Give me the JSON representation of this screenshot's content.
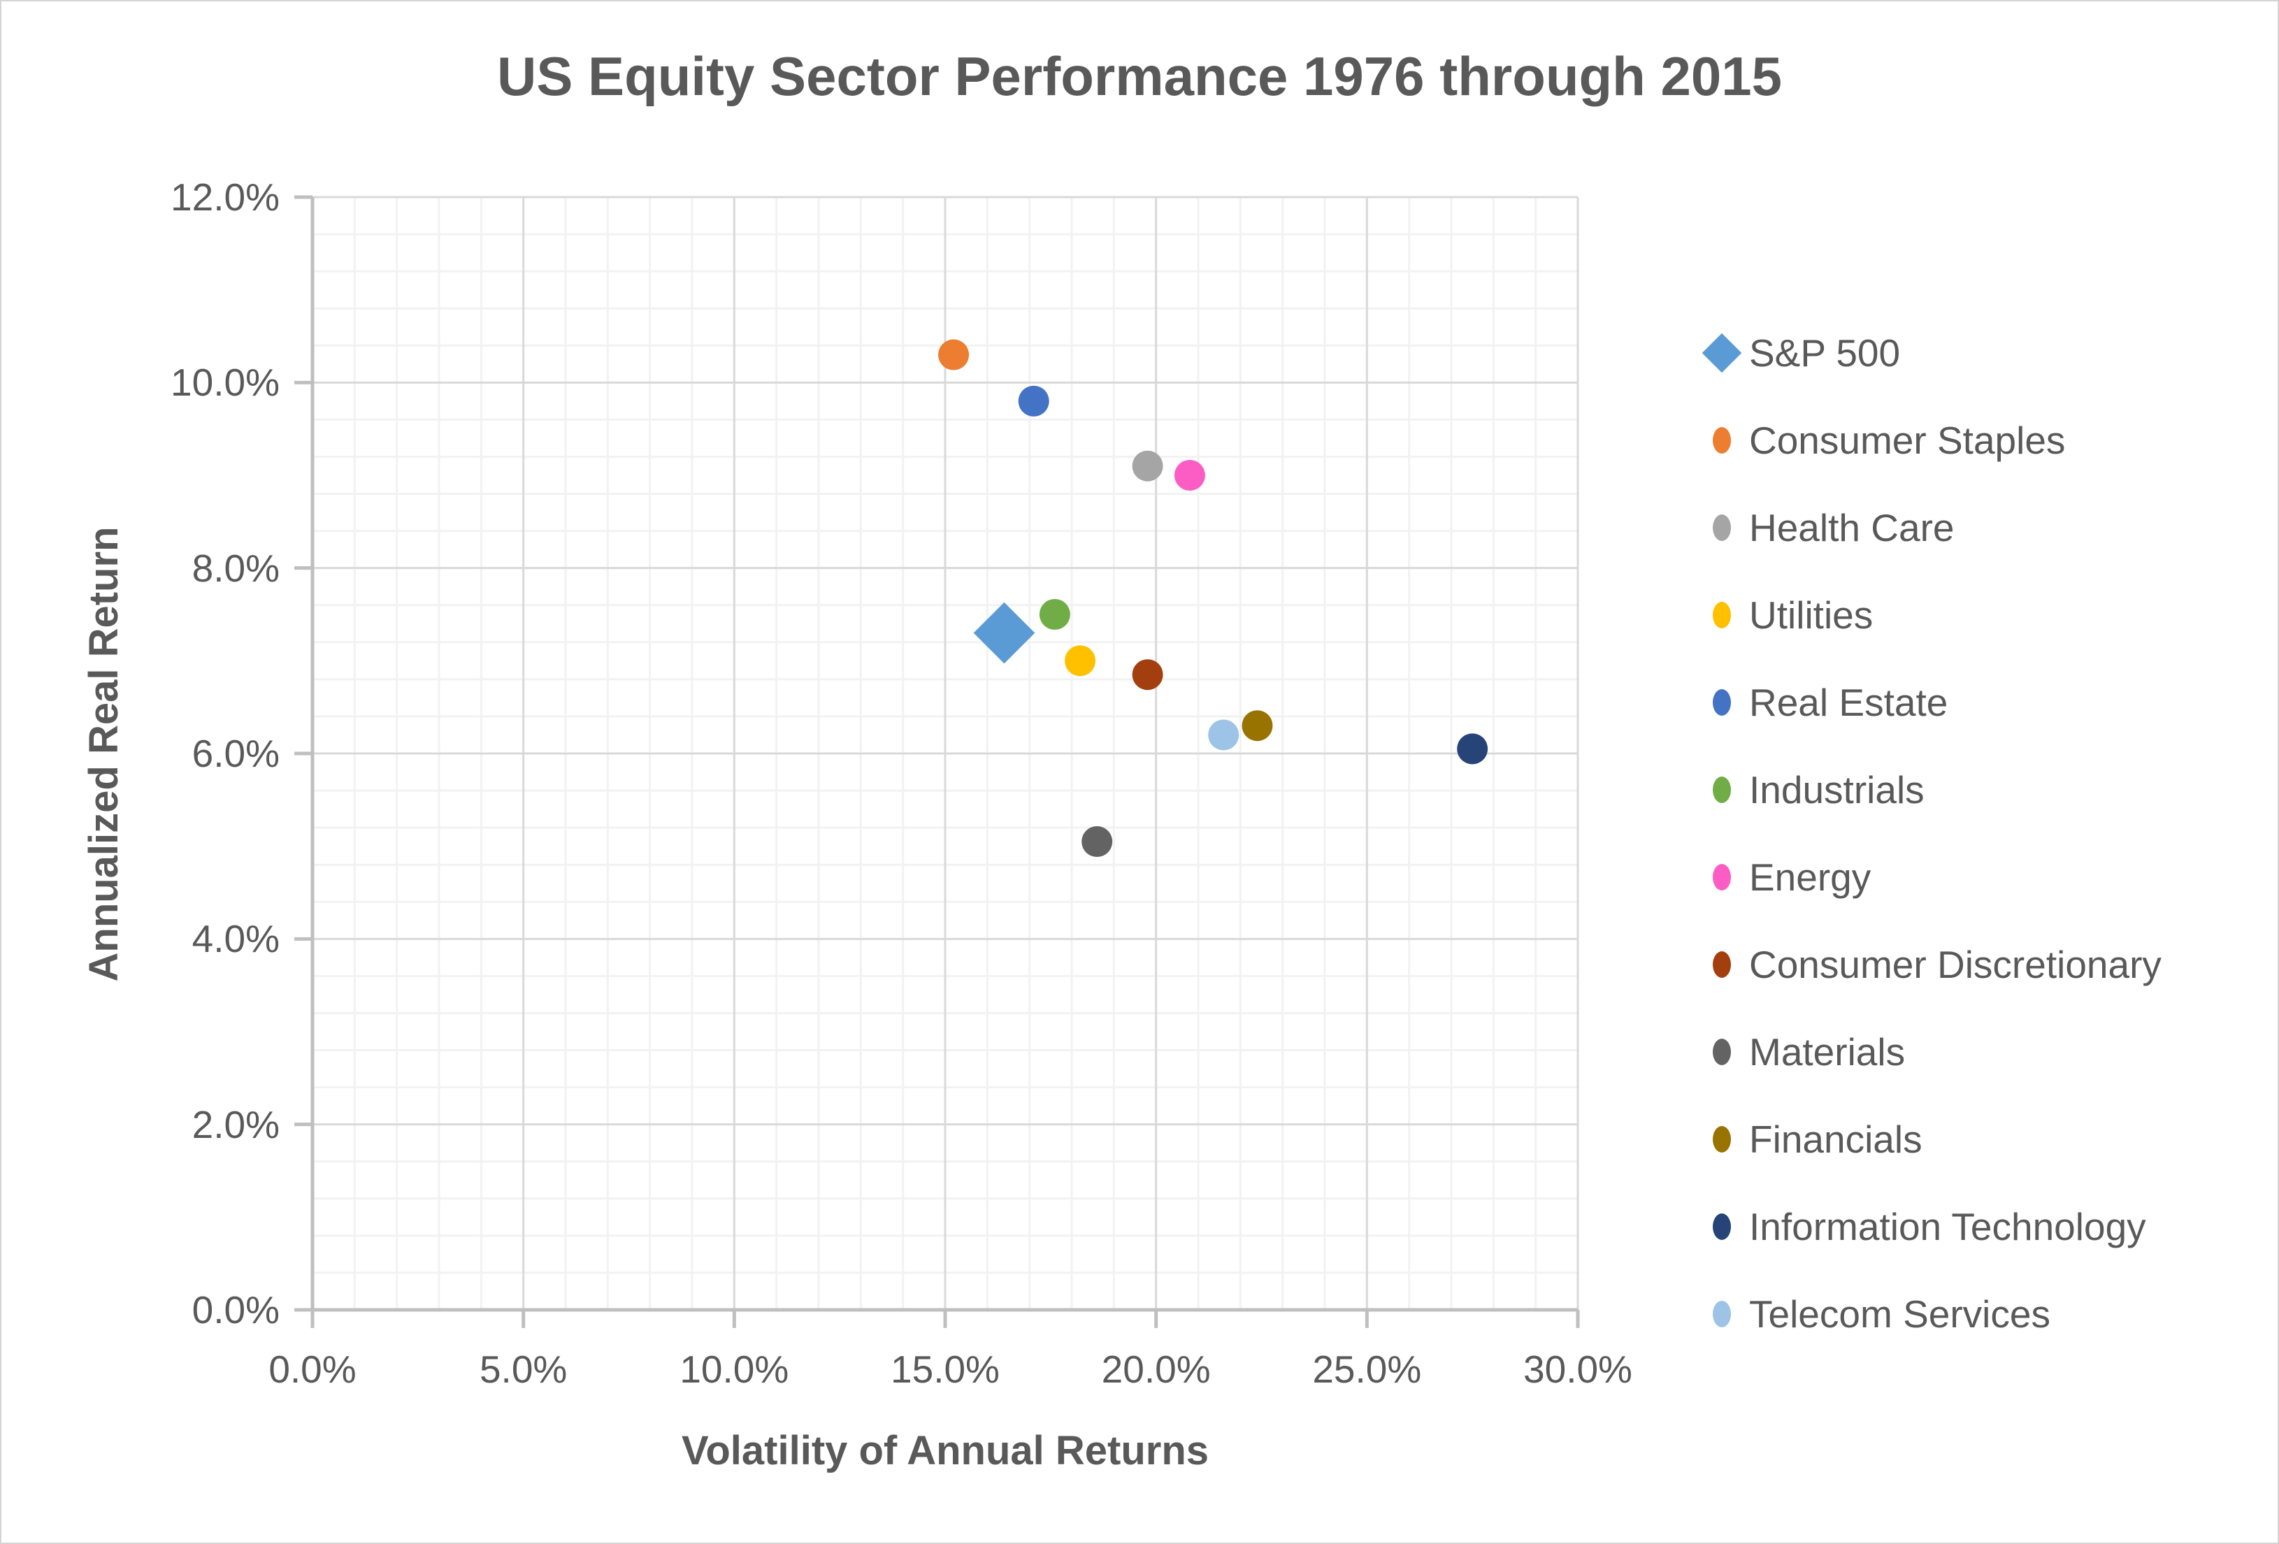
{
  "chart": {
    "title": "US Equity Sector Performance 1976 through 2015",
    "x_axis_title": "Volatility of Annual Returns",
    "y_axis_title": "Annualized Real Return"
  },
  "chart_data": {
    "type": "scatter",
    "title": "US Equity Sector Performance 1976 through 2015",
    "xlabel": "Volatility of Annual Returns",
    "ylabel": "Annualized Real Return",
    "xlim": [
      0,
      30
    ],
    "ylim": [
      0,
      12
    ],
    "x_major_step": 5,
    "x_minor_step": 1,
    "y_major_step": 2,
    "y_minor_step": 0.4,
    "grid": true,
    "legend_position": "right",
    "x_tick_labels": [
      "0.0%",
      "5.0%",
      "10.0%",
      "15.0%",
      "20.0%",
      "25.0%",
      "30.0%"
    ],
    "y_tick_labels": [
      "12.0%",
      "10.0%",
      "8.0%",
      "6.0%",
      "4.0%",
      "2.0%",
      "0.0%"
    ],
    "series": [
      {
        "name": "S&P 500",
        "marker": "diamond",
        "color": "#5B9BD5",
        "x": 16.4,
        "y": 7.3
      },
      {
        "name": "Consumer Staples",
        "marker": "circle",
        "color": "#ED7D31",
        "x": 15.2,
        "y": 10.3
      },
      {
        "name": "Health Care",
        "marker": "circle",
        "color": "#A5A5A5",
        "x": 19.8,
        "y": 9.1
      },
      {
        "name": "Utilities",
        "marker": "circle",
        "color": "#FFC000",
        "x": 18.2,
        "y": 7.0
      },
      {
        "name": "Real Estate",
        "marker": "circle",
        "color": "#4472C4",
        "x": 17.1,
        "y": 9.8
      },
      {
        "name": "Industrials",
        "marker": "circle",
        "color": "#70AD47",
        "x": 17.6,
        "y": 7.5
      },
      {
        "name": "Energy",
        "marker": "circle",
        "color": "#FB5DC5",
        "x": 20.8,
        "y": 9.0
      },
      {
        "name": "Consumer Discretionary",
        "marker": "circle",
        "color": "#A33E0F",
        "x": 19.8,
        "y": 6.85
      },
      {
        "name": "Materials",
        "marker": "circle",
        "color": "#636363",
        "x": 18.6,
        "y": 5.05
      },
      {
        "name": "Financials",
        "marker": "circle",
        "color": "#997300",
        "x": 22.4,
        "y": 6.3
      },
      {
        "name": "Information Technology",
        "marker": "circle",
        "color": "#264478",
        "x": 27.5,
        "y": 6.05
      },
      {
        "name": "Telecom Services",
        "marker": "circle",
        "color": "#9DC3E6",
        "x": 21.6,
        "y": 6.2
      }
    ],
    "style": {
      "title_color": "#595959",
      "axis_title_color": "#595959",
      "tick_label_color": "#595959",
      "major_grid_color": "#D9D9D9",
      "minor_grid_color": "#F2F2F2",
      "axis_line_color": "#BFBFBF",
      "background": "#FFFFFF"
    }
  }
}
